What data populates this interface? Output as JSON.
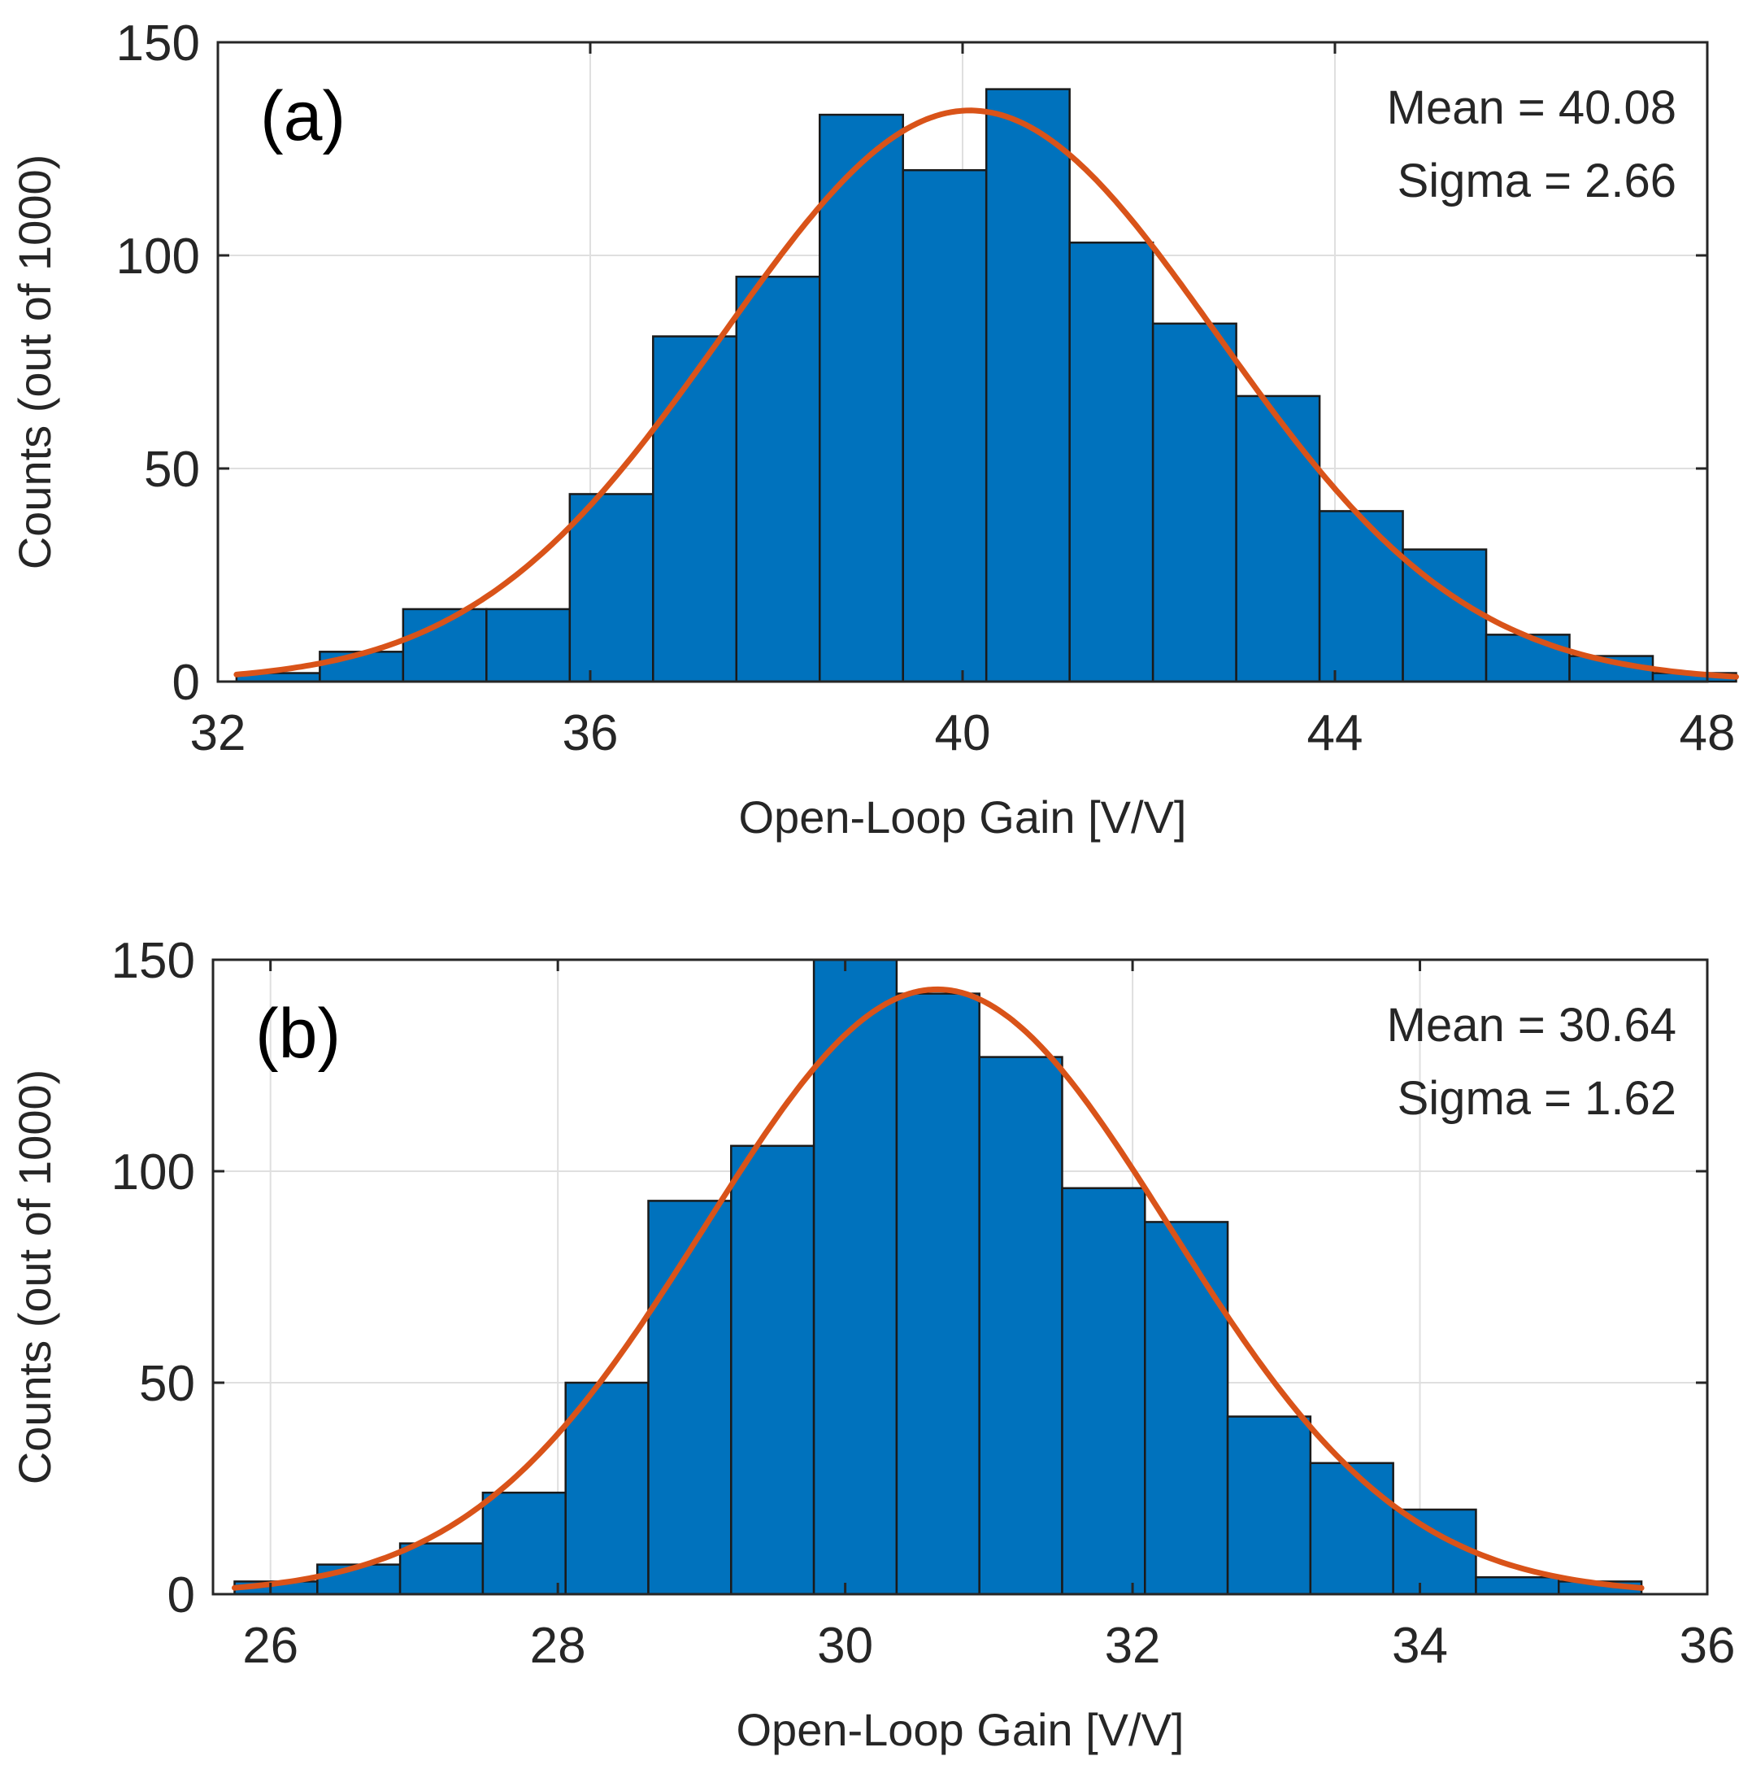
{
  "colors": {
    "bar": "#0072BD",
    "fit": "#D95319"
  },
  "chart_data": [
    {
      "type": "bar",
      "panel_label": "(a)",
      "xlabel": "Open-Loop Gain [V/V]",
      "ylabel": "Counts (out of 1000)",
      "xlim": [
        32,
        48
      ],
      "ylim": [
        0,
        150
      ],
      "xticks": [
        "32",
        "36",
        "40",
        "44",
        "48"
      ],
      "yticks": [
        "0",
        "50",
        "100",
        "150"
      ],
      "grid": true,
      "annotation": [
        "Mean = 40.08",
        "Sigma = 2.66"
      ],
      "bin_start": 32.2,
      "bin_width": 0.895,
      "values": [
        2,
        7,
        17,
        17,
        44,
        81,
        95,
        133,
        120,
        139,
        103,
        84,
        67,
        40,
        31,
        11,
        6,
        2
      ],
      "fit": {
        "mean": 40.08,
        "sigma": 2.66,
        "peak": 134
      }
    },
    {
      "type": "bar",
      "panel_label": "(b)",
      "xlabel": "Open-Loop Gain [V/V]",
      "ylabel": "Counts (out of 1000)",
      "xlim": [
        25.6,
        36
      ],
      "ylim": [
        0,
        150
      ],
      "xticks": [
        "26",
        "28",
        "30",
        "32",
        "34",
        "36"
      ],
      "yticks": [
        "0",
        "50",
        "100",
        "150"
      ],
      "grid": true,
      "annotation": [
        "Mean = 30.64",
        "Sigma = 1.62"
      ],
      "bin_start": 25.75,
      "bin_width": 0.576,
      "values": [
        3,
        7,
        12,
        24,
        50,
        93,
        106,
        150,
        142,
        127,
        96,
        88,
        42,
        31,
        20,
        4,
        3
      ],
      "fit": {
        "mean": 30.64,
        "sigma": 1.62,
        "peak": 143
      }
    }
  ]
}
